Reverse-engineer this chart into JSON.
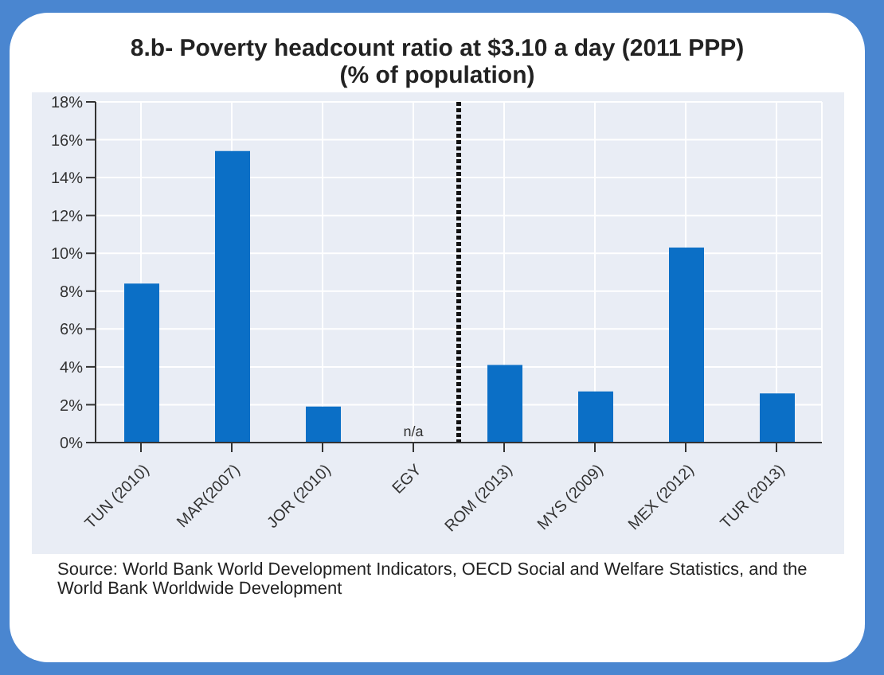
{
  "chart_data": {
    "type": "bar",
    "title": "8.b- Poverty headcount ratio at $3.10 a day (2011 PPP)",
    "subtitle": "(% of population)",
    "categories": [
      "TUN (2010)",
      "MAR(2007)",
      "JOR (2010)",
      "EGY",
      "ROM (2013)",
      "MYS (2009)",
      "MEX (2012)",
      "TUR (2013)"
    ],
    "values": [
      8.4,
      15.4,
      1.9,
      null,
      4.1,
      2.7,
      10.3,
      2.6
    ],
    "value_labels": [
      null,
      null,
      null,
      "n/a",
      null,
      null,
      null,
      null
    ],
    "color": "#0b6fc6",
    "ylim": [
      0,
      18
    ],
    "yticks": [
      {
        "value": 0,
        "label": "0%"
      },
      {
        "value": 2,
        "label": "2%"
      },
      {
        "value": 4,
        "label": "4%"
      },
      {
        "value": 6,
        "label": "6%"
      },
      {
        "value": 8,
        "label": "8%"
      },
      {
        "value": 10,
        "label": "10%"
      },
      {
        "value": 12,
        "label": "12%"
      },
      {
        "value": 14,
        "label": "14%"
      },
      {
        "value": 16,
        "label": "16%"
      },
      {
        "value": 18,
        "label": "18%"
      }
    ],
    "grid": true,
    "annotations": [
      "Source: World Bank World Development Indicators, OECD Social and Welfare Statistics, and the World Bank Worldwide Development"
    ]
  }
}
